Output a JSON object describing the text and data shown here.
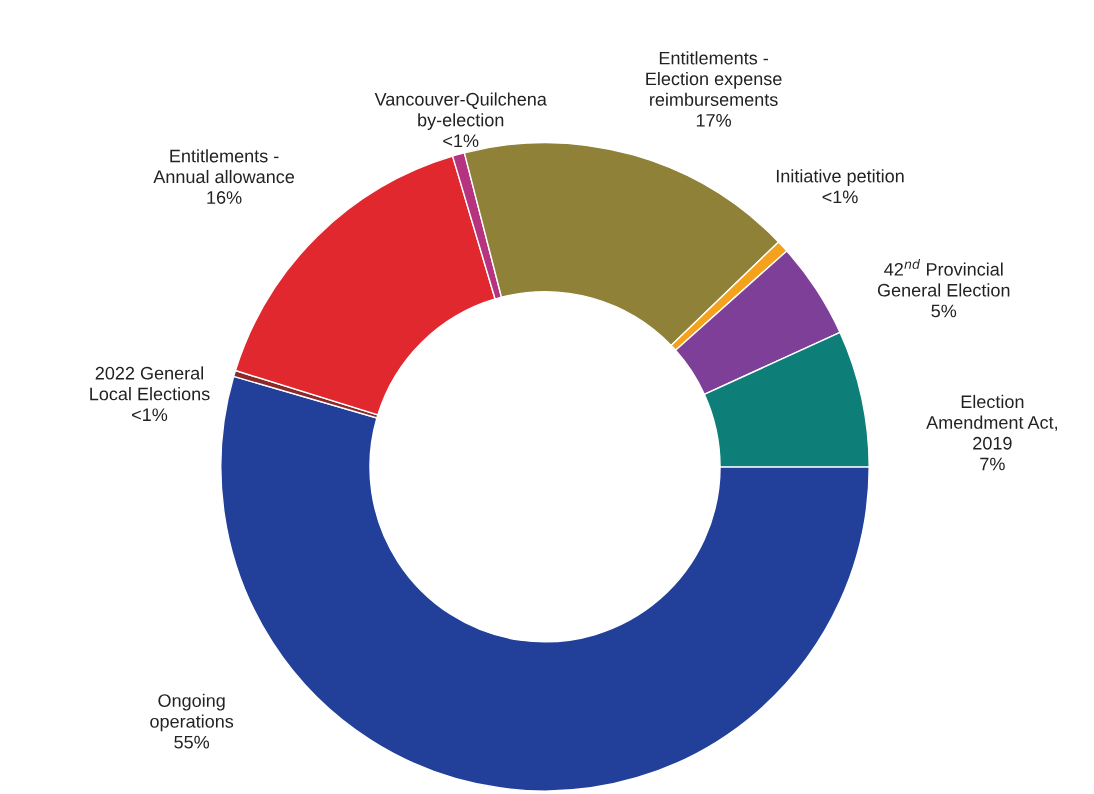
{
  "chart_data": {
    "type": "donut",
    "categories": [
      "Ongoing\noperations",
      "2022 General\nLocal Elections",
      "Entitlements -\nAnnual allowance",
      "Vancouver-Quilchena\nby-election",
      "Entitlements -\nElection expense\nreimbursements",
      "Initiative petition",
      "42$^{nd}$ Provincial\nGeneral Election",
      "Election\nAmendment Act,\n2019"
    ],
    "values": [
      54.5,
      0.3,
      15.6,
      0.6,
      16.8,
      0.6,
      4.8,
      6.8
    ],
    "value_labels": [
      "55%",
      "<1%",
      "16%",
      "<1%",
      "17%",
      "<1%",
      "5%",
      "7%"
    ],
    "colors": [
      "#22409a",
      "#8b2a2a",
      "#e0282e",
      "#b5337f",
      "#8f8137",
      "#f4a11d",
      "#7d3f98",
      "#0e7f78"
    ]
  }
}
